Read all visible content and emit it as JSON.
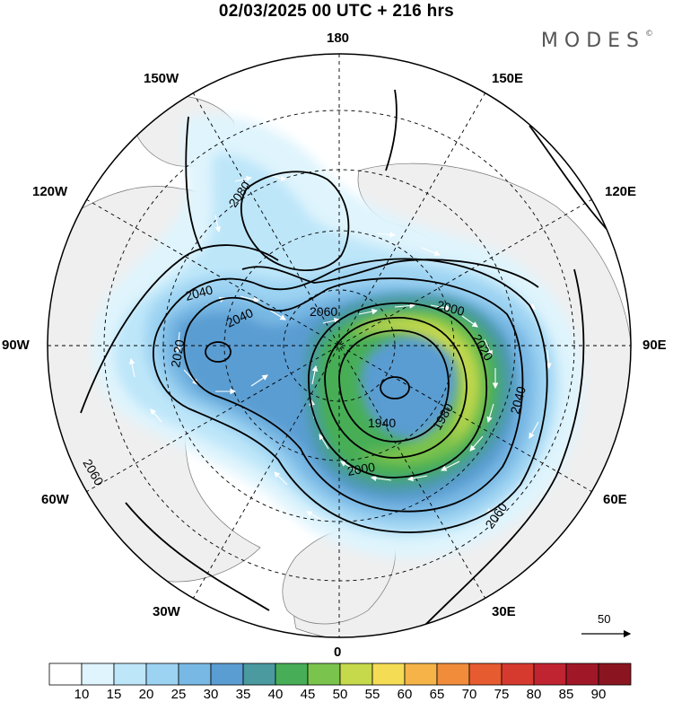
{
  "title": "02/03/2025  00 UTC  + 216 hrs",
  "brand": "MODES",
  "brand_mark": "©",
  "meridian_labels": {
    "m180": "180",
    "m150w": "150W",
    "m150e": "150E",
    "m120w": "120W",
    "m120e": "120E",
    "m90w": "90W",
    "m90e": "90E",
    "m60w": "60W",
    "m60e": "60E",
    "m30w": "30W",
    "m30e": "30E",
    "m0": "0"
  },
  "contour_labels": [
    "2080",
    "2060",
    "2040",
    "2040",
    "2020",
    "2000",
    "2020",
    "1980",
    "1940",
    "2000",
    "2040",
    "2060",
    "2060"
  ],
  "vector_reference": {
    "value": "50"
  },
  "colorbar": {
    "levels": [
      "10",
      "15",
      "20",
      "25",
      "30",
      "35",
      "40",
      "45",
      "50",
      "55",
      "60",
      "65",
      "70",
      "75",
      "80",
      "85",
      "90"
    ],
    "colors": [
      "#ffffff",
      "#dff4fd",
      "#bde6f9",
      "#9dd3f2",
      "#78b8e4",
      "#5a9dd2",
      "#4a9aa0",
      "#47ae57",
      "#7ac34c",
      "#c5d94b",
      "#f5dc55",
      "#f5b348",
      "#f08c3a",
      "#e65b2f",
      "#d63a2f",
      "#bf2430",
      "#a01828",
      "#8a1520"
    ]
  },
  "map_colors": {
    "land": "#f0f0f0",
    "ocean": "#ffffff",
    "grid": "#000000"
  }
}
